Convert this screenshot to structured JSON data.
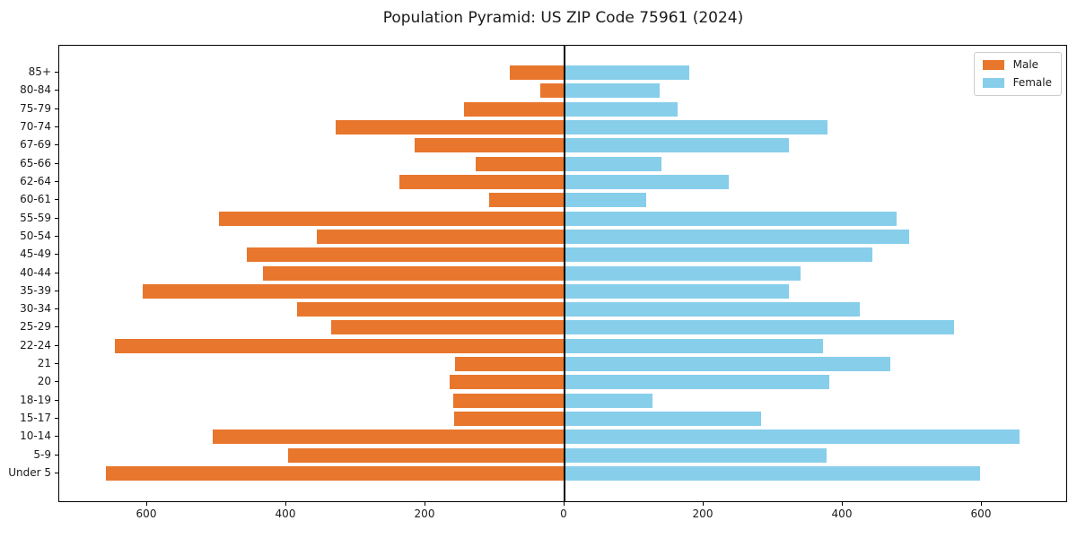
{
  "chart_data": {
    "type": "bar",
    "subtype": "population-pyramid-horizontal",
    "title": "Population Pyramid: US ZIP Code 75961 (2024)",
    "categories_top_to_bottom": [
      "85+",
      "80-84",
      "75-79",
      "70-74",
      "67-69",
      "65-66",
      "62-64",
      "60-61",
      "55-59",
      "50-54",
      "45-49",
      "40-44",
      "35-39",
      "30-34",
      "25-29",
      "22-24",
      "21",
      "20",
      "18-19",
      "15-17",
      "10-14",
      "5-9",
      "Under 5"
    ],
    "series": [
      {
        "name": "Male",
        "side": "left",
        "color": "#e8762d",
        "values": [
          79,
          35,
          144,
          329,
          216,
          128,
          237,
          108,
          497,
          356,
          457,
          434,
          606,
          384,
          336,
          647,
          157,
          165,
          160,
          159,
          506,
          398,
          660
        ]
      },
      {
        "name": "Female",
        "side": "right",
        "color": "#87ceeb",
        "values": [
          179,
          137,
          163,
          378,
          322,
          139,
          236,
          117,
          477,
          495,
          443,
          339,
          323,
          425,
          560,
          371,
          469,
          380,
          127,
          282,
          654,
          377,
          598
        ]
      }
    ],
    "x_axis": {
      "tick_values": [
        -600,
        -400,
        -200,
        0,
        200,
        400,
        600
      ],
      "tick_labels": [
        "600",
        "400",
        "200",
        "0",
        "200",
        "400",
        "600"
      ],
      "xlim": [
        -726,
        722
      ]
    },
    "legend": {
      "position": "upper right",
      "entries": [
        "Male",
        "Female"
      ]
    },
    "grid": false
  },
  "colors": {
    "axis": "#000000",
    "background": "#ffffff",
    "legend_border": "#cccccc",
    "text": "#1a1a1a"
  }
}
